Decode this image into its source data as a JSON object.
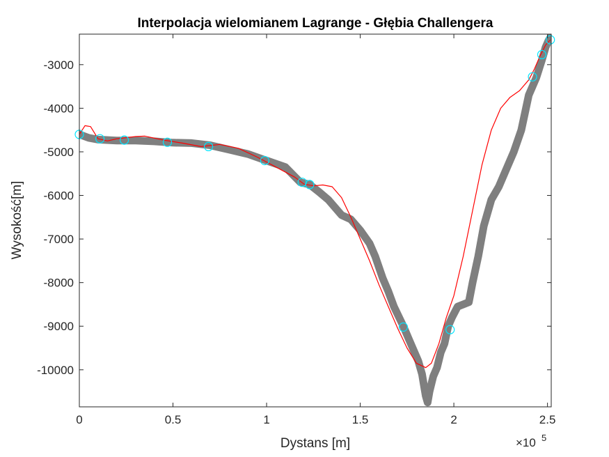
{
  "chart_data": {
    "type": "line",
    "title": "Interpolacja wielomianem Lagrange - Głębia Challengera",
    "xlabel": "Dystans [m]",
    "ylabel": "Wysokość[m]",
    "x_exponent_label": "×10",
    "x_exponent_power": "5",
    "x_scale": 100000,
    "xlim": [
      0,
      252000
    ],
    "ylim": [
      -10850,
      -2300
    ],
    "x_ticks": [
      0,
      50000,
      100000,
      150000,
      200000,
      250000
    ],
    "x_tick_labels": [
      "0",
      "0.5",
      "1",
      "1.5",
      "2",
      "2.5"
    ],
    "y_ticks": [
      -10000,
      -9000,
      -8000,
      -7000,
      -6000,
      -5000,
      -4000,
      -3000
    ],
    "y_tick_labels": [
      "-10000",
      "-9000",
      "-8000",
      "-7000",
      "-6000",
      "-5000",
      "-4000",
      "-3000"
    ],
    "grid": false,
    "colors": {
      "profile": "#7f7f7f",
      "interpolation": "#ff0000",
      "nodes": "#00e5ff"
    },
    "series": [
      {
        "role": "profile",
        "x": [
          0,
          5000,
          10000,
          20000,
          30000,
          40000,
          50000,
          60000,
          70000,
          80000,
          90000,
          100000,
          110000,
          118000,
          123000,
          128000,
          133000,
          137000,
          140000,
          145000,
          150000,
          155000,
          158000,
          162000,
          165000,
          168000,
          173000,
          176000,
          178000,
          181000,
          183000,
          184000,
          185000,
          186000,
          187000,
          189000,
          191000,
          193000,
          195000,
          197000,
          199000,
          202000,
          205000,
          208000,
          210000,
          213000,
          216000,
          220000,
          224000,
          228000,
          232000,
          236000,
          240000,
          244000,
          247000,
          249000,
          250500,
          251500
        ],
        "y": [
          -4600,
          -4680,
          -4720,
          -4740,
          -4740,
          -4760,
          -4790,
          -4800,
          -4850,
          -4950,
          -5050,
          -5200,
          -5350,
          -5700,
          -5750,
          -5920,
          -6100,
          -6300,
          -6450,
          -6550,
          -6800,
          -7100,
          -7400,
          -7900,
          -8200,
          -8550,
          -9000,
          -9300,
          -9500,
          -9800,
          -10100,
          -10350,
          -10600,
          -10750,
          -10500,
          -10150,
          -9950,
          -9600,
          -9400,
          -9000,
          -8800,
          -8550,
          -8500,
          -8450,
          -8000,
          -7400,
          -6700,
          -6100,
          -5800,
          -5400,
          -5000,
          -4500,
          -3700,
          -3300,
          -2900,
          -2600,
          -2450,
          -2380
        ]
      },
      {
        "role": "interpolation",
        "x": [
          0,
          3000,
          6000,
          10000,
          15000,
          20000,
          30000,
          35000,
          45000,
          55000,
          65000,
          75000,
          85000,
          95000,
          105000,
          115000,
          120000,
          125000,
          130000,
          135000,
          140000,
          145000,
          150000,
          155000,
          160000,
          165000,
          170000,
          175000,
          180000,
          185000,
          188000,
          192000,
          196000,
          200000,
          205000,
          210000,
          215000,
          220000,
          225000,
          230000,
          235000,
          240000,
          243000,
          246000,
          249000,
          251500
        ],
        "y": [
          -4600,
          -4400,
          -4420,
          -4700,
          -4750,
          -4700,
          -4650,
          -4640,
          -4730,
          -4800,
          -4880,
          -4830,
          -4920,
          -5120,
          -5350,
          -5580,
          -5740,
          -5780,
          -5760,
          -5800,
          -6050,
          -6500,
          -7000,
          -7500,
          -8050,
          -8550,
          -9050,
          -9500,
          -9850,
          -9950,
          -9850,
          -9400,
          -8800,
          -8300,
          -7400,
          -6350,
          -5300,
          -4500,
          -4000,
          -3750,
          -3600,
          -3350,
          -3100,
          -2800,
          -2550,
          -2430
        ]
      },
      {
        "role": "nodes",
        "x": [
          0,
          11000,
          24000,
          47000,
          69000,
          99000,
          119000,
          123000,
          173000,
          198000,
          242000,
          247000,
          251500
        ],
        "y": [
          -4600,
          -4700,
          -4730,
          -4780,
          -4880,
          -5200,
          -5700,
          -5750,
          -9020,
          -9080,
          -3280,
          -2770,
          -2430
        ]
      }
    ]
  }
}
